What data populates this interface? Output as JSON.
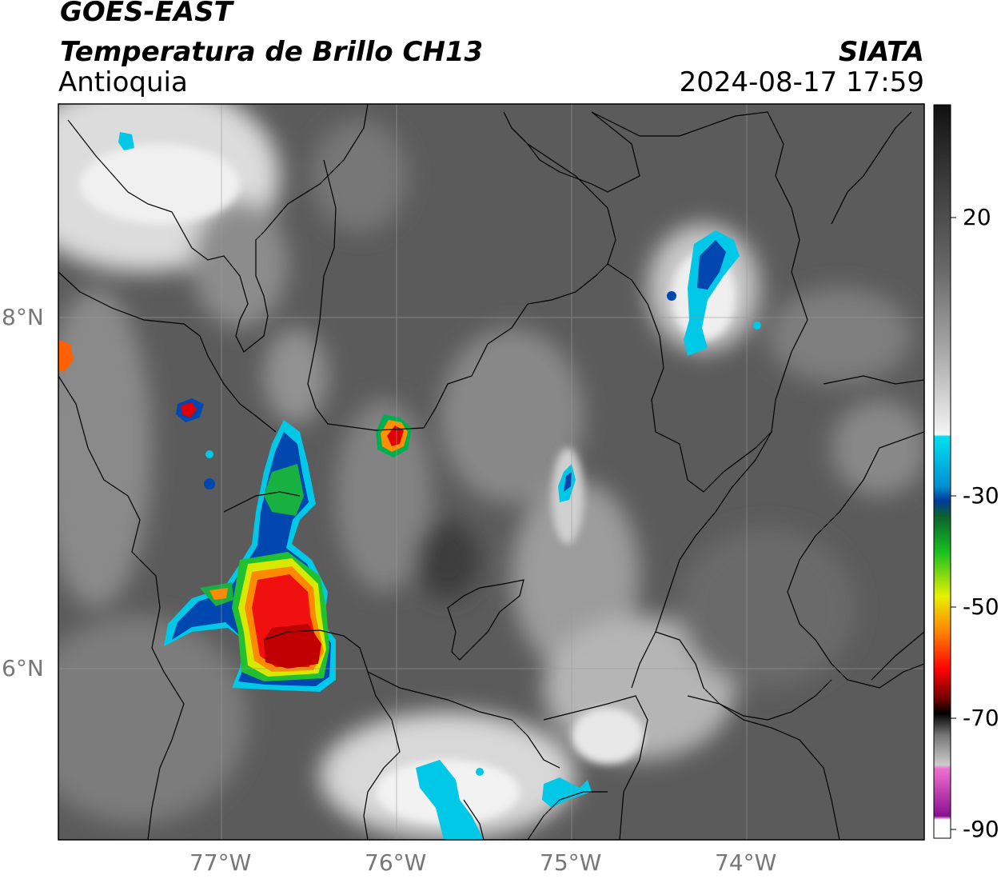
{
  "header": {
    "satellite": "GOES-EAST",
    "product": "Temperatura de Brillo CH13",
    "organization": "SIATA",
    "region": "Antioquia",
    "datetime": "2024-08-17 17:59"
  },
  "axes": {
    "lat_labels": [
      "8°N",
      "6°N"
    ],
    "lon_labels": [
      "77°W",
      "76°W",
      "75°W",
      "74°W"
    ],
    "grid": true
  },
  "colorbar": {
    "tick_labels": [
      "20",
      "-30",
      "-50",
      "-70",
      "-90"
    ],
    "colors": {
      "warm_gray": "#5a5a5a",
      "cold_white": "#f2f2f2",
      "cyan": "#00cfe8",
      "blue": "#003c9e",
      "green": "#18b030",
      "yellow": "#e0e800",
      "orange": "#ff8c00",
      "red": "#e00000",
      "dark_red": "#7a0000",
      "black": "#000000",
      "pink": "#e060c0",
      "purple": "#8a1090"
    }
  }
}
